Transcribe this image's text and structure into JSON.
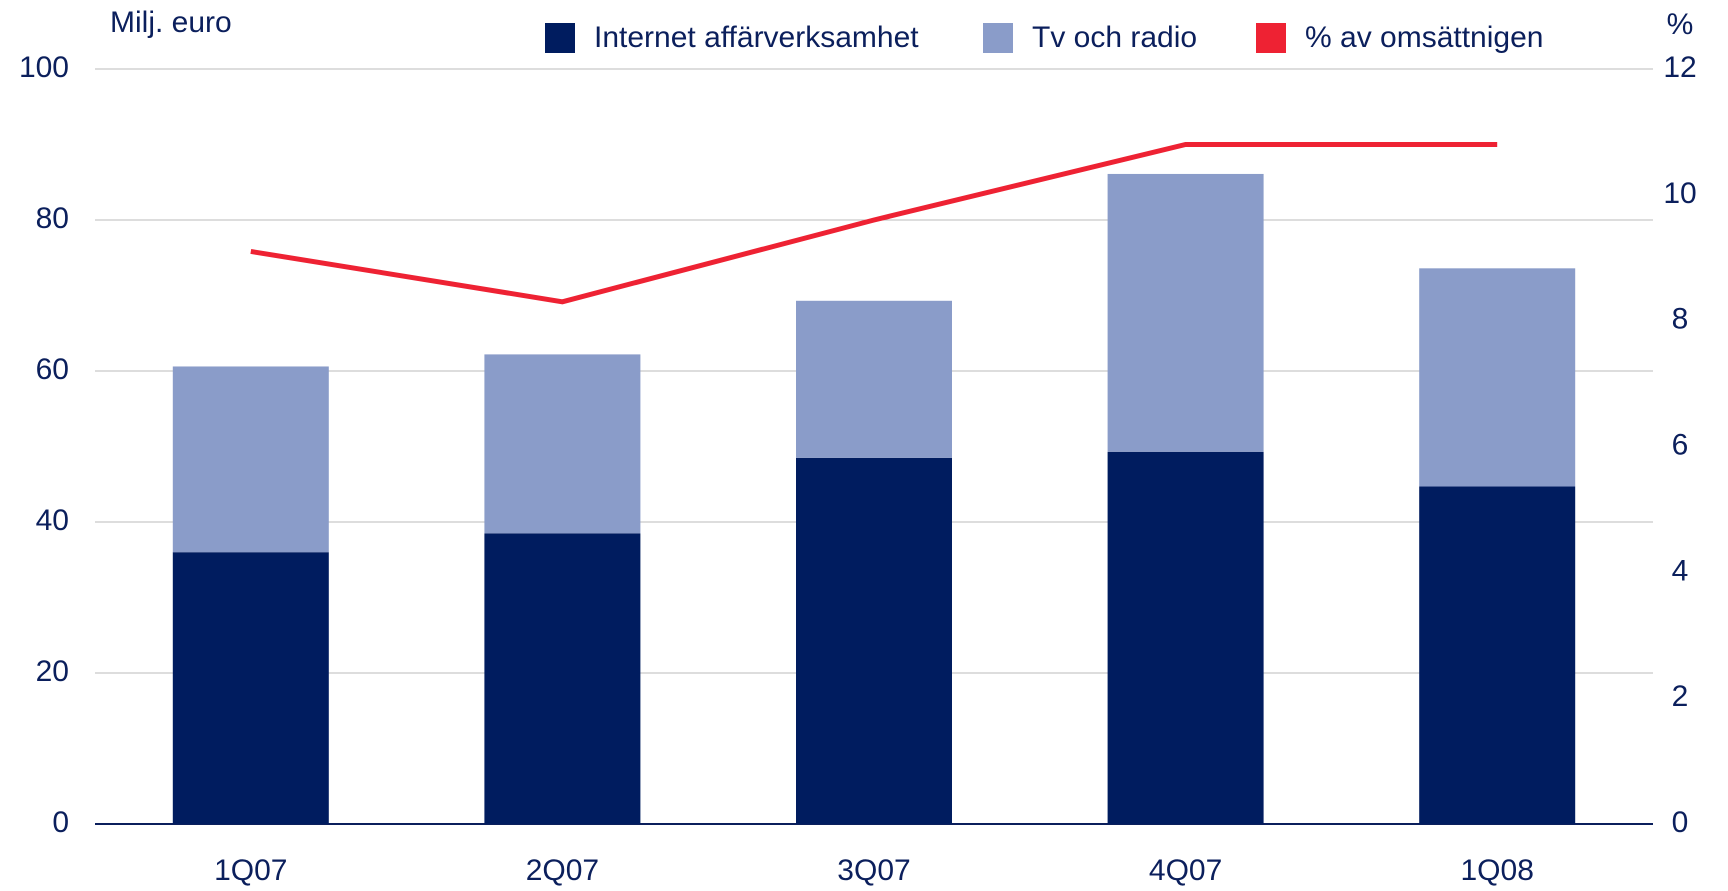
{
  "chart_data": {
    "type": "bar",
    "stacked": true,
    "y_label": "Milj. euro",
    "y2_label": "%",
    "categories": [
      "1Q07",
      "2Q07",
      "3Q07",
      "4Q07",
      "1Q08"
    ],
    "series": [
      {
        "name": "Internet affärverksamhet",
        "color": "#001c5f",
        "values": [
          36,
          38.5,
          48.5,
          49.3,
          44.7
        ]
      },
      {
        "name": "Tv och radio",
        "color": "#8a9cc9",
        "values": [
          24.6,
          23.7,
          20.8,
          36.8,
          28.9
        ]
      },
      {
        "name": "% av omsättnigen",
        "color": "#ee2233",
        "type": "line",
        "axis": "y2",
        "values": [
          9.1,
          8.3,
          9.6,
          10.8,
          10.8
        ]
      }
    ],
    "ylim": [
      0,
      100
    ],
    "yticks": [
      0,
      20,
      40,
      60,
      80,
      100
    ],
    "y2lim": [
      0,
      12
    ],
    "y2ticks": [
      0,
      2,
      4,
      6,
      8,
      10,
      12
    ],
    "grid": true,
    "legend": "top"
  }
}
